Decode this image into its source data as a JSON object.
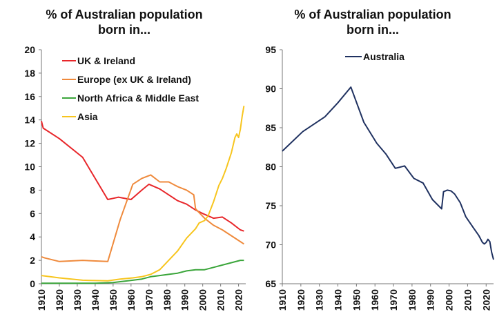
{
  "charts": {
    "left": {
      "title_line1": "% of Australian population",
      "title_line2": "born in..."
    },
    "right": {
      "title_line1": "% of Australian population",
      "title_line2": "born in..."
    }
  },
  "chart_data": [
    {
      "type": "line",
      "title": "% of Australian population born in...",
      "xlim": [
        1910,
        2024
      ],
      "ylim": [
        0,
        20
      ],
      "x_ticks": [
        1910,
        1920,
        1930,
        1940,
        1950,
        1960,
        1970,
        1980,
        1990,
        2000,
        2010,
        2020
      ],
      "y_ticks": [
        0,
        2,
        4,
        6,
        8,
        10,
        12,
        14,
        16,
        18,
        20
      ],
      "legend_position": "top-left",
      "grid": false,
      "series": [
        {
          "name": "UK & Ireland",
          "color": "#e8262a",
          "points": [
            [
              1910,
              13.9
            ],
            [
              1911,
              13.3
            ],
            [
              1920,
              12.4
            ],
            [
              1933,
              10.8
            ],
            [
              1947,
              7.2
            ],
            [
              1950,
              7.3
            ],
            [
              1953,
              7.4
            ],
            [
              1960,
              7.2
            ],
            [
              1966,
              8.0
            ],
            [
              1970,
              8.5
            ],
            [
              1976,
              8.1
            ],
            [
              1986,
              7.1
            ],
            [
              1991,
              6.8
            ],
            [
              1996,
              6.3
            ],
            [
              2000,
              6.0
            ],
            [
              2006,
              5.6
            ],
            [
              2011,
              5.7
            ],
            [
              2016,
              5.2
            ],
            [
              2021,
              4.6
            ],
            [
              2023,
              4.5
            ]
          ]
        },
        {
          "name": "Europe (ex UK & Ireland)",
          "color": "#ef8a3c",
          "points": [
            [
              1910,
              2.3
            ],
            [
              1912,
              2.2
            ],
            [
              1920,
              1.9
            ],
            [
              1933,
              2.0
            ],
            [
              1947,
              1.9
            ],
            [
              1954,
              5.5
            ],
            [
              1961,
              8.5
            ],
            [
              1966,
              9.0
            ],
            [
              1971,
              9.3
            ],
            [
              1976,
              8.7
            ],
            [
              1981,
              8.7
            ],
            [
              1986,
              8.3
            ],
            [
              1991,
              8.0
            ],
            [
              1995,
              7.6
            ],
            [
              1996,
              6.4
            ],
            [
              2001,
              5.6
            ],
            [
              2006,
              5.0
            ],
            [
              2011,
              4.6
            ],
            [
              2016,
              4.1
            ],
            [
              2021,
              3.6
            ],
            [
              2023,
              3.4
            ]
          ]
        },
        {
          "name": "North Africa & Middle East",
          "color": "#3aa53a",
          "points": [
            [
              1910,
              0.05
            ],
            [
              1940,
              0.05
            ],
            [
              1950,
              0.1
            ],
            [
              1961,
              0.3
            ],
            [
              1966,
              0.4
            ],
            [
              1971,
              0.6
            ],
            [
              1976,
              0.7
            ],
            [
              1981,
              0.8
            ],
            [
              1986,
              0.9
            ],
            [
              1991,
              1.1
            ],
            [
              1996,
              1.2
            ],
            [
              2001,
              1.2
            ],
            [
              2006,
              1.4
            ],
            [
              2011,
              1.6
            ],
            [
              2016,
              1.8
            ],
            [
              2021,
              2.0
            ],
            [
              2023,
              2.0
            ]
          ]
        },
        {
          "name": "Asia",
          "color": "#f7c51e",
          "points": [
            [
              1910,
              0.7
            ],
            [
              1920,
              0.5
            ],
            [
              1933,
              0.3
            ],
            [
              1947,
              0.25
            ],
            [
              1954,
              0.4
            ],
            [
              1961,
              0.5
            ],
            [
              1966,
              0.6
            ],
            [
              1971,
              0.8
            ],
            [
              1976,
              1.2
            ],
            [
              1981,
              2.0
            ],
            [
              1986,
              2.8
            ],
            [
              1991,
              3.9
            ],
            [
              1996,
              4.7
            ],
            [
              1998,
              5.2
            ],
            [
              2001,
              5.4
            ],
            [
              2003,
              5.8
            ],
            [
              2006,
              7.0
            ],
            [
              2009,
              8.4
            ],
            [
              2011,
              9.0
            ],
            [
              2013,
              9.8
            ],
            [
              2016,
              11.2
            ],
            [
              2018,
              12.5
            ],
            [
              2019,
              12.8
            ],
            [
              2020,
              12.5
            ],
            [
              2021,
              13.2
            ],
            [
              2022,
              14.3
            ],
            [
              2023,
              15.2
            ]
          ]
        }
      ]
    },
    {
      "type": "line",
      "title": "% of Australian population born in...",
      "xlim": [
        1910,
        2024
      ],
      "ylim": [
        65,
        95
      ],
      "x_ticks": [
        1910,
        1920,
        1930,
        1940,
        1950,
        1960,
        1970,
        1980,
        1990,
        2000,
        2010,
        2020
      ],
      "y_ticks": [
        65,
        70,
        75,
        80,
        85,
        90,
        95
      ],
      "legend_position": "top-center",
      "grid": false,
      "series": [
        {
          "name": "Australia",
          "color": "#1f3160",
          "points": [
            [
              1910,
              82.0
            ],
            [
              1921,
              84.5
            ],
            [
              1933,
              86.4
            ],
            [
              1940,
              88.2
            ],
            [
              1947,
              90.2
            ],
            [
              1954,
              85.7
            ],
            [
              1961,
              83.0
            ],
            [
              1966,
              81.6
            ],
            [
              1971,
              79.8
            ],
            [
              1976,
              80.1
            ],
            [
              1981,
              78.5
            ],
            [
              1986,
              77.9
            ],
            [
              1991,
              75.8
            ],
            [
              1996,
              74.6
            ],
            [
              1997,
              76.8
            ],
            [
              1999,
              77.0
            ],
            [
              2001,
              76.9
            ],
            [
              2003,
              76.5
            ],
            [
              2006,
              75.4
            ],
            [
              2009,
              73.6
            ],
            [
              2011,
              72.9
            ],
            [
              2013,
              72.2
            ],
            [
              2016,
              71.2
            ],
            [
              2018,
              70.3
            ],
            [
              2019,
              70.1
            ],
            [
              2020,
              70.3
            ],
            [
              2021,
              70.7
            ],
            [
              2022,
              70.4
            ],
            [
              2023,
              69.0
            ],
            [
              2024,
              68.1
            ]
          ]
        }
      ]
    }
  ]
}
